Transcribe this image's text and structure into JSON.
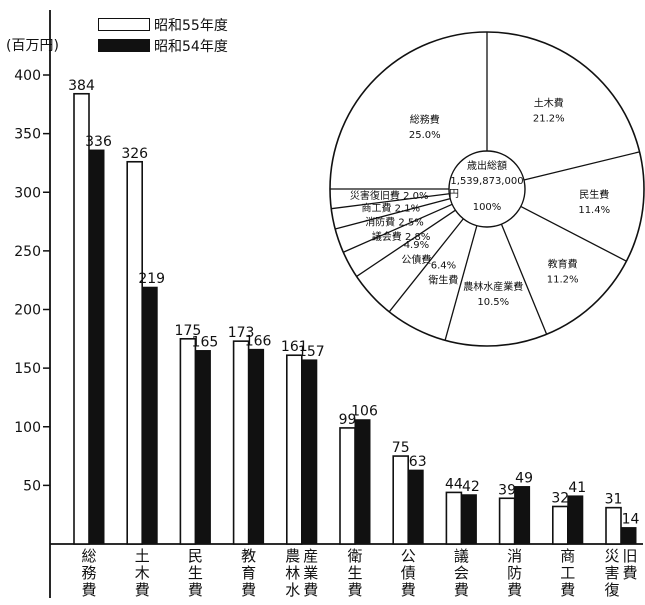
{
  "chart_data": [
    {
      "type": "bar",
      "ylabel": "(百万円)",
      "ylim": [
        0,
        420
      ],
      "yticks": [
        50,
        100,
        150,
        200,
        250,
        300,
        350,
        400
      ],
      "categories": [
        [
          "総",
          "務",
          "費"
        ],
        [
          "土",
          "木",
          "費"
        ],
        [
          "民",
          "生",
          "費"
        ],
        [
          "教",
          "育",
          "費"
        ],
        [
          "農",
          "林",
          "水",
          "産",
          "業",
          "費"
        ],
        [
          "衛",
          "生",
          "費"
        ],
        [
          "公",
          "債",
          "費"
        ],
        [
          "議",
          "会",
          "費"
        ],
        [
          "消",
          "防",
          "費"
        ],
        [
          "商",
          "工",
          "費"
        ],
        [
          "災",
          "害",
          "復",
          "旧",
          "費"
        ]
      ],
      "series": [
        {
          "name": "昭和55年度",
          "color": "#ffffff",
          "values": [
            384,
            326,
            175,
            173,
            161,
            99,
            75,
            44,
            39,
            32,
            31
          ]
        },
        {
          "name": "昭和54年度",
          "color": "#111111",
          "values": [
            336,
            219,
            165,
            166,
            157,
            106,
            63,
            42,
            49,
            41,
            14
          ]
        }
      ],
      "legend": "top-left",
      "grid": false
    },
    {
      "type": "pie",
      "center_label": [
        "歳出総額",
        "1,539,873,000",
        "円",
        "100%"
      ],
      "slices": [
        {
          "label": "土木費",
          "value": 21.2,
          "value_text": "21.2%"
        },
        {
          "label": "民生費",
          "value": 11.4,
          "value_text": "11.4%"
        },
        {
          "label": "教育費",
          "value": 11.2,
          "value_text": "11.2%"
        },
        {
          "label": "農林水産業費",
          "value": 10.5,
          "value_text": "10.5%"
        },
        {
          "label": "衛生費",
          "value": 6.4,
          "value_text": "6.4%"
        },
        {
          "label": "公債費",
          "value": 4.9,
          "value_text": "4.9%"
        },
        {
          "label": "議会費",
          "value": 2.8,
          "value_text": "2.8%"
        },
        {
          "label": "消防費",
          "value": 2.5,
          "value_text": "2.5%"
        },
        {
          "label": "商工費",
          "value": 2.1,
          "value_text": "2.1%"
        },
        {
          "label": "災害復旧費",
          "value": 2.0,
          "value_text": "2.0%"
        },
        {
          "label": "総務費",
          "value": 25.0,
          "value_text": "25.0%"
        }
      ]
    }
  ]
}
